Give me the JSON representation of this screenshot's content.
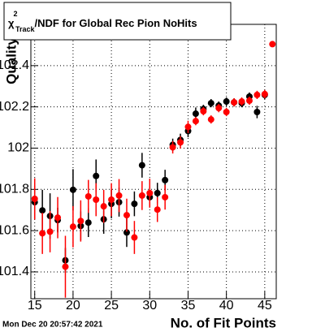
{
  "chart_data": {
    "type": "errorbar",
    "title": {
      "symbol": "χ",
      "sup": "2",
      "sub": "Track",
      "rest": "/NDF for Global Rec Pion NoHits"
    },
    "x_label": "No. of Fit Points",
    "y_label": "Quality",
    "timestamp": "Mon Dec 20 20:57:42 2021",
    "x": [
      15,
      16,
      17,
      18,
      19,
      20,
      21,
      22,
      23,
      24,
      25,
      26,
      27,
      28,
      29,
      30,
      31,
      32,
      33,
      34,
      35,
      36,
      37,
      38,
      39,
      40,
      41,
      42,
      43,
      44,
      45,
      46
    ],
    "series": [
      {
        "color": "#000000",
        "values": [
          101.738,
          101.698,
          101.671,
          101.651,
          101.456,
          101.798,
          101.623,
          101.639,
          101.865,
          101.655,
          101.73,
          101.738,
          101.591,
          101.73,
          101.917,
          101.762,
          101.782,
          101.845,
          102.016,
          102.04,
          102.083,
          102.167,
          102.19,
          102.218,
          102.206,
          102.226,
          102.222,
          102.218,
          102.25,
          102.175,
          102.258,
          null
        ],
        "errors": [
          0.08,
          0.1,
          0.11,
          0.06,
          0.06,
          0.1,
          0.07,
          0.07,
          0.08,
          0.07,
          0.07,
          0.07,
          0.07,
          0.06,
          0.06,
          0.05,
          0.05,
          0.05,
          0.03,
          0.03,
          0.03,
          0.03,
          0.02,
          0.02,
          0.02,
          0.02,
          0.02,
          0.02,
          0.02,
          0.03,
          0.02,
          null
        ]
      },
      {
        "color": "#ff0000",
        "values": [
          101.754,
          101.587,
          101.595,
          101.663,
          101.425,
          101.619,
          101.647,
          101.766,
          101.75,
          101.718,
          101.75,
          101.77,
          101.675,
          101.567,
          101.77,
          101.782,
          101.702,
          101.762,
          102.004,
          102.028,
          102.103,
          102.131,
          102.179,
          102.139,
          102.194,
          102.175,
          102.222,
          102.226,
          102.23,
          102.258,
          102.262,
          102.504
        ],
        "errors": [
          0.1,
          0.1,
          0.1,
          0.1,
          0.15,
          0.1,
          0.1,
          0.08,
          0.08,
          0.08,
          0.08,
          0.08,
          0.08,
          0.08,
          0.07,
          0.07,
          0.06,
          0.06,
          0.03,
          0.03,
          0.03,
          0.02,
          0.02,
          0.02,
          0.02,
          0.02,
          0.02,
          0.02,
          0.02,
          0.02,
          0.02,
          0.01
        ]
      }
    ],
    "xlim": [
      14.5,
      46.5
    ],
    "ylim": [
      101.27,
      102.6
    ],
    "xticks": [
      15,
      20,
      25,
      30,
      35,
      40,
      45
    ],
    "yticks": [
      101.4,
      101.6,
      101.8,
      102,
      102.2,
      102.4
    ],
    "grid": true
  }
}
